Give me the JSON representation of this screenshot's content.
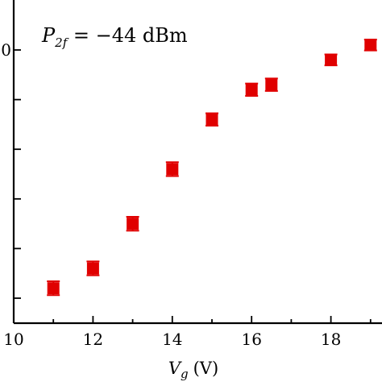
{
  "chart_data": {
    "type": "scatter",
    "title": "",
    "xlabel_symbol": "V",
    "xlabel_subscript": "g",
    "xlabel_unit": "(V)",
    "xlabel": "V_g (V)",
    "ylabel": "",
    "xlim": [
      10,
      19.4
    ],
    "ylim": [
      0,
      1.03
    ],
    "x_ticks": [
      10,
      12,
      14,
      16,
      18
    ],
    "y_ticks": [
      0,
      0.2,
      0.4,
      0.6,
      0.8,
      1.0
    ],
    "y_tick_labels_visible": [
      "0"
    ],
    "annotation": {
      "symbol": "P",
      "subscript": "2f",
      "text": " = −44 dBm"
    },
    "marker_color": "#e00000",
    "series": [
      {
        "x": [
          11,
          12,
          13,
          14,
          15,
          16,
          16.5,
          18,
          19
        ],
        "y": [
          0.04,
          0.12,
          0.3,
          0.52,
          0.72,
          0.84,
          0.86,
          0.96,
          1.02
        ],
        "yerr": [
          0.028,
          0.028,
          0.028,
          0.028,
          0.025,
          0.025,
          0.025,
          0.022,
          0.022
        ]
      }
    ]
  }
}
